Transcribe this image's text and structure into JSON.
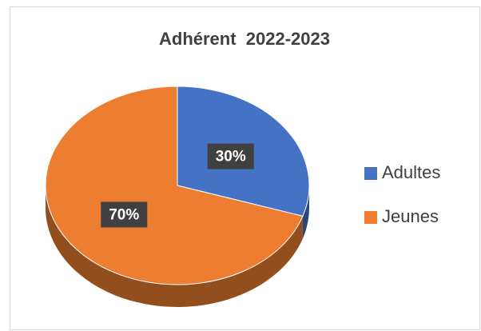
{
  "chart_data": {
    "type": "pie",
    "title": "Adhérent  2022-2023",
    "categories": [
      "Adultes",
      "Jeunes"
    ],
    "values": [
      30,
      70
    ],
    "value_labels": [
      "30%",
      "70%"
    ],
    "colors": [
      "#4472c4",
      "#ed7d31"
    ],
    "legend": "right"
  }
}
